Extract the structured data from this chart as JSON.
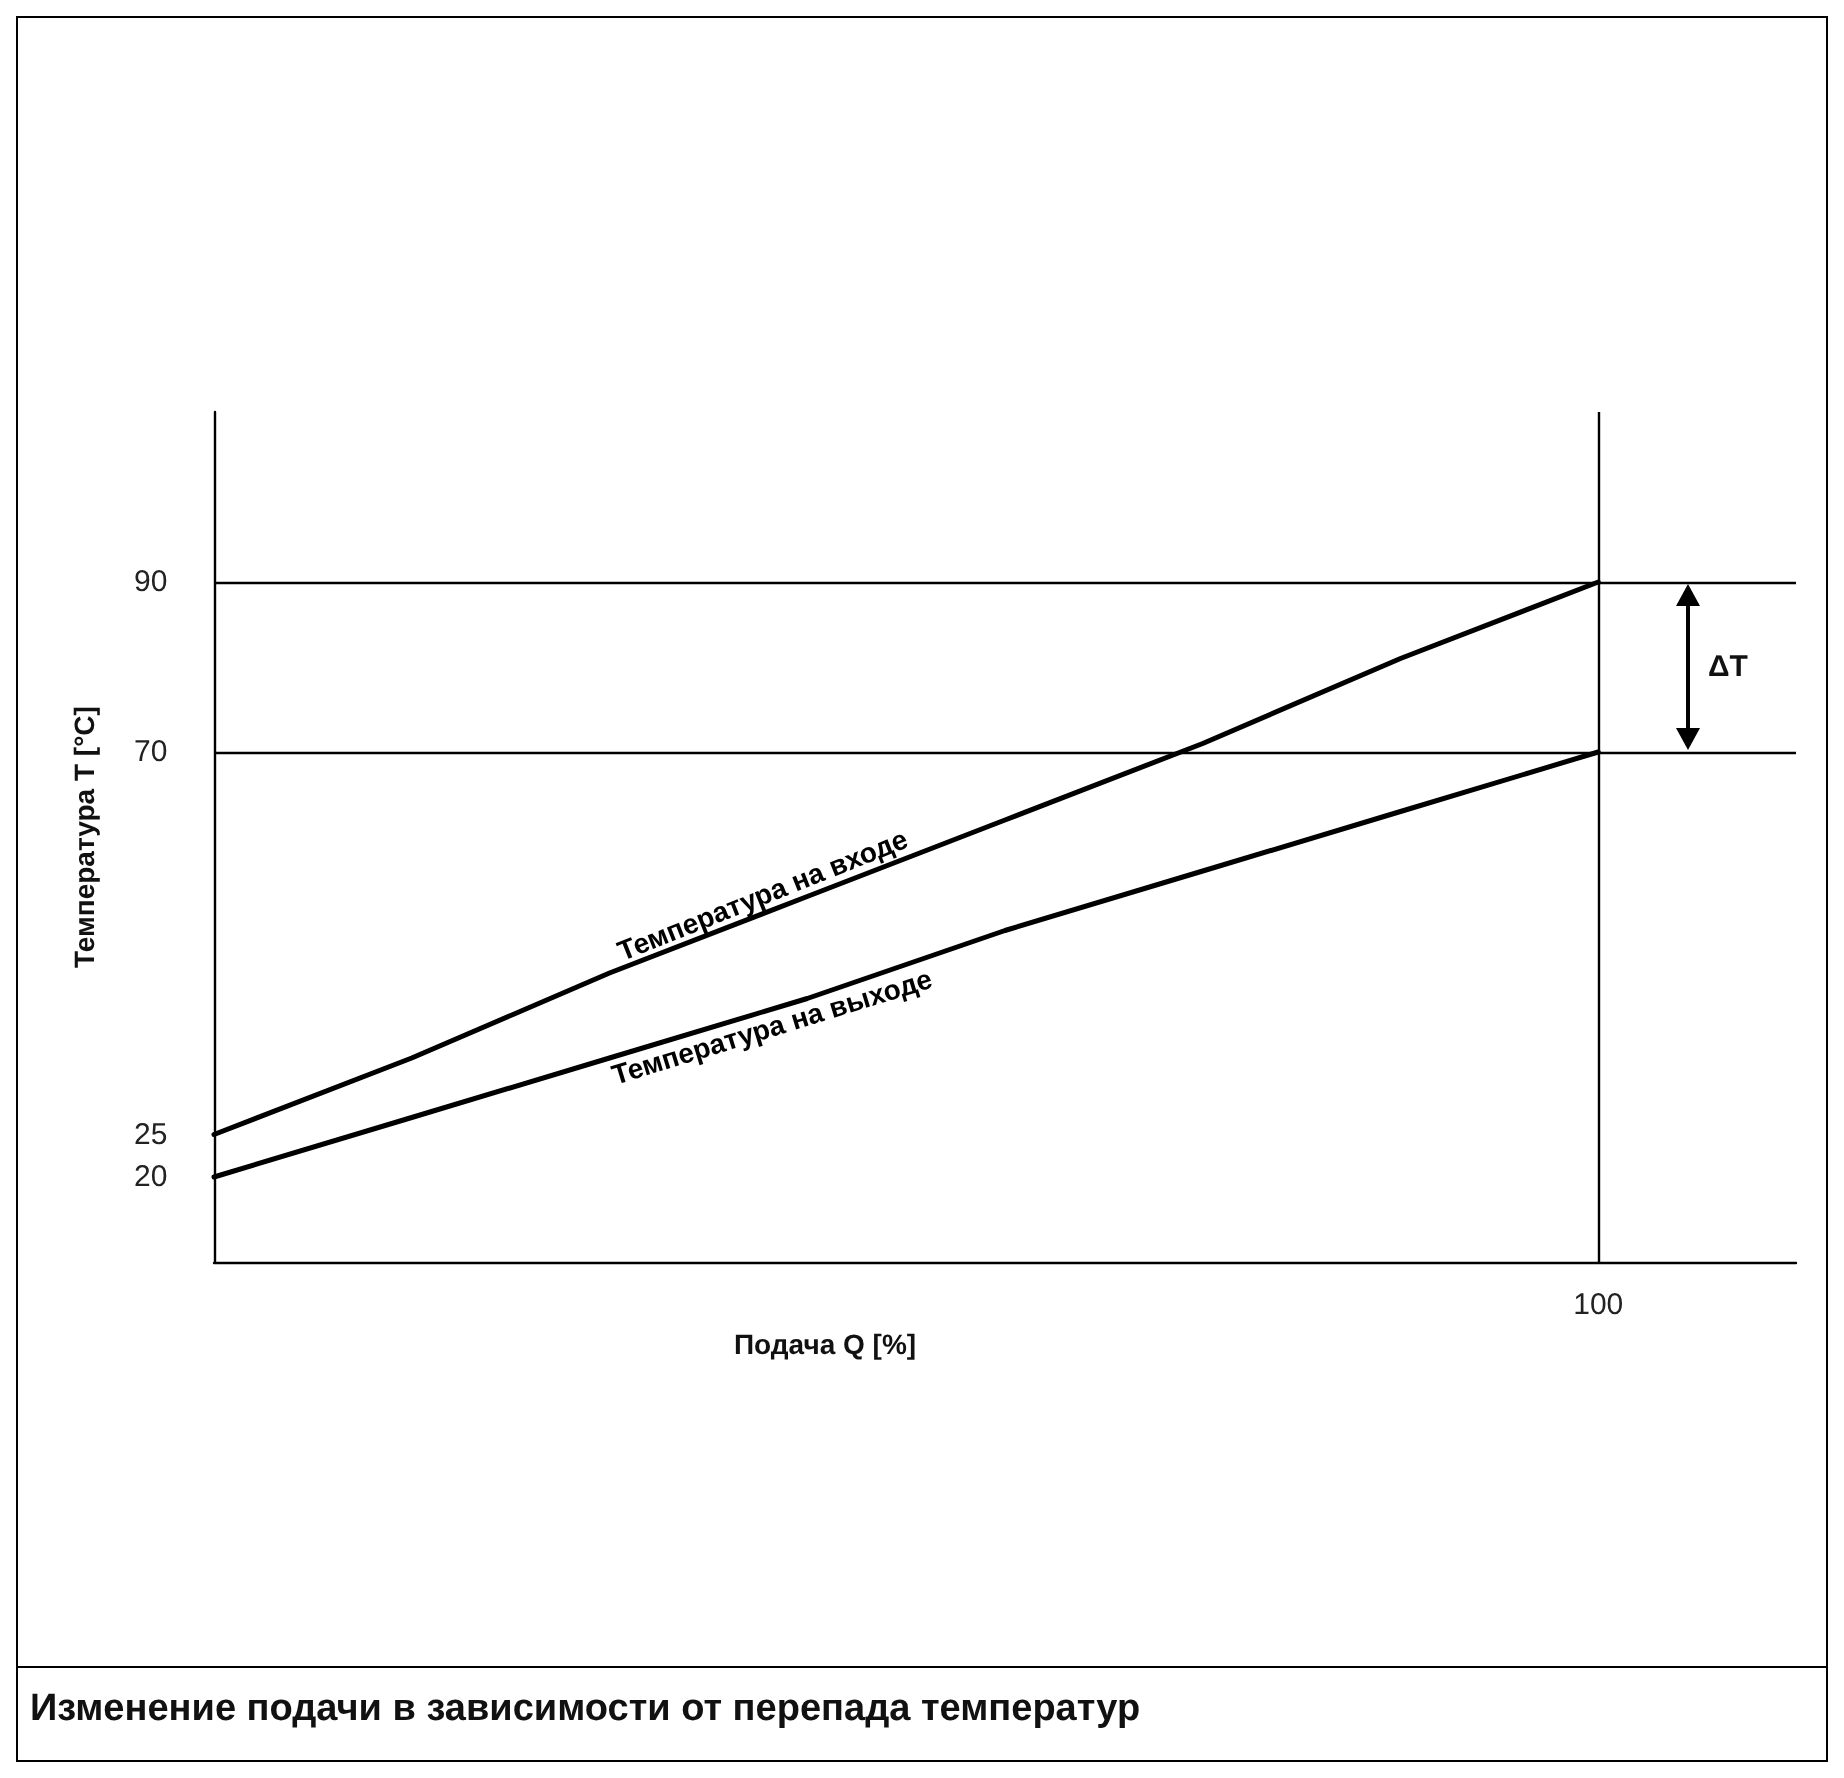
{
  "chart_data": {
    "type": "line",
    "title": "Изменение подачи в зависимости от перепада температур",
    "xlabel": "Подача Q [%]",
    "ylabel": "Температура T [°C]",
    "categories": [
      null,
      null,
      null,
      null,
      null,
      null,
      null,
      "100",
      null
    ],
    "ylim": [
      10,
      110
    ],
    "yticks": [
      20,
      25,
      70,
      90
    ],
    "series": [
      {
        "name": "Температура на входе",
        "color": "#000000",
        "values": [
          25,
          34,
          44,
          53,
          62,
          71,
          81,
          90,
          null
        ]
      },
      {
        "name": "Температура на выходе",
        "color": "#000000",
        "values": [
          20,
          27,
          34,
          41,
          49,
          56,
          63,
          70,
          null
        ]
      }
    ],
    "ref_lines": [
      {
        "axis": "y",
        "value": 90,
        "color": "#000000"
      },
      {
        "axis": "y",
        "value": 70,
        "color": "#000000"
      },
      {
        "axis": "x",
        "value": "100",
        "color": "#000000"
      }
    ],
    "annotations": [
      "ΔT"
    ],
    "grid": false,
    "legend": false,
    "marker": "none",
    "line_style": "solid"
  }
}
